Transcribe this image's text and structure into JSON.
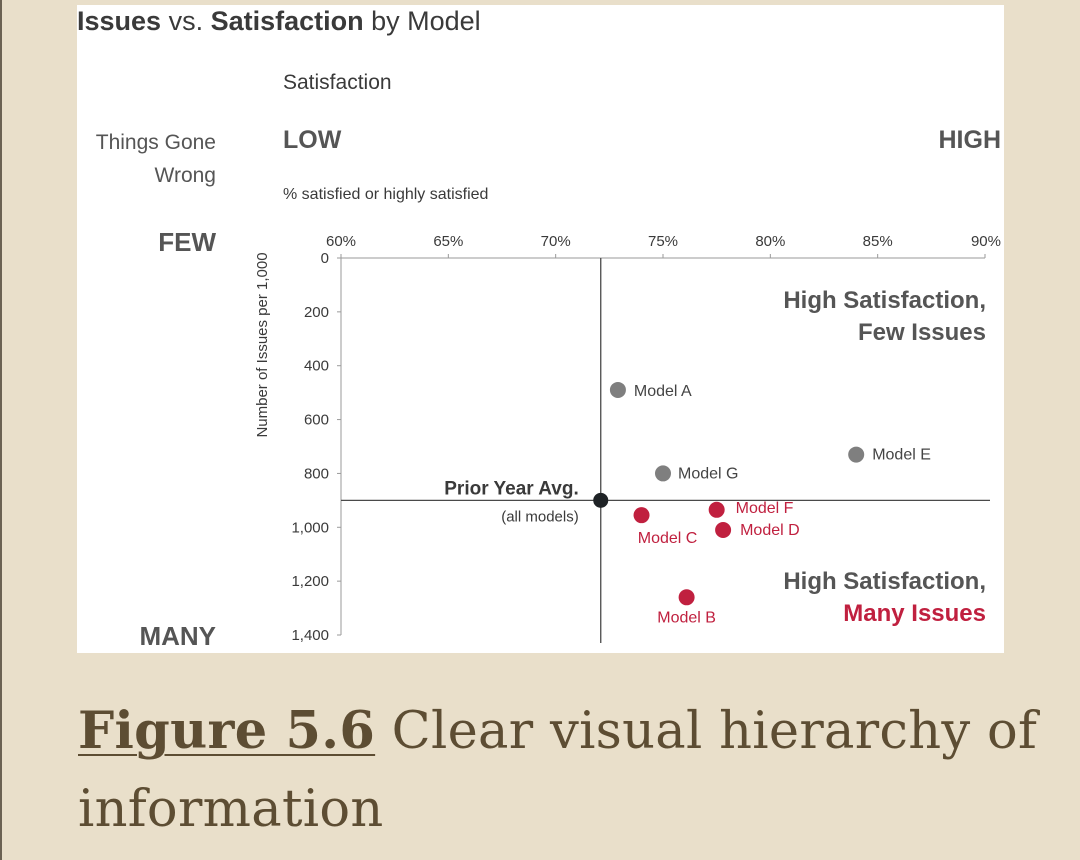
{
  "caption": {
    "label": "Figure 5.6",
    "text": "Clear visual hierarchy of information"
  },
  "chart_data": {
    "type": "scatter",
    "title_parts": [
      "Issues",
      " vs. ",
      "Satisfaction",
      " by Model"
    ],
    "x_axis": {
      "heading": "Satisfaction",
      "low_label": "LOW",
      "high_label": "HIGH",
      "unit_label": "% satisfied or highly satisfied",
      "range": [
        60,
        90
      ],
      "ticks": [
        60,
        65,
        70,
        75,
        80,
        85,
        90
      ],
      "tick_labels": [
        "60%",
        "65%",
        "70%",
        "75%",
        "80%",
        "85%",
        "90%"
      ]
    },
    "y_axis": {
      "heading_line1": "Things Gone",
      "heading_line2": "Wrong",
      "few_label": "FEW",
      "many_label": "MANY",
      "label": "Number of Issues per 1,000",
      "range": [
        0,
        1400
      ],
      "ticks": [
        0,
        200,
        400,
        600,
        800,
        1000,
        1200,
        1400
      ],
      "tick_labels": [
        "0",
        "200",
        "400",
        "600",
        "800",
        "1,000",
        "1,200",
        "1,400"
      ]
    },
    "reference": {
      "x": 72.1,
      "y": 900,
      "label": "Prior Year Avg.",
      "sublabel": "(all models)"
    },
    "quadrant_labels": {
      "top_line1": "High Satisfaction,",
      "top_line2": "Few Issues",
      "bottom_line1": "High Satisfaction,",
      "bottom_line2": "Many Issues"
    },
    "colors": {
      "gray": "#7f7f7f",
      "red": "#c0203f",
      "avg": "#1f2326",
      "text": "#3a3a3a"
    },
    "points": [
      {
        "name": "Model A",
        "x": 72.9,
        "y": 490,
        "group": "gray"
      },
      {
        "name": "Model B",
        "x": 76.1,
        "y": 1260,
        "group": "red"
      },
      {
        "name": "Model C",
        "x": 74.0,
        "y": 955,
        "group": "red"
      },
      {
        "name": "Model D",
        "x": 77.8,
        "y": 1010,
        "group": "red"
      },
      {
        "name": "Model E",
        "x": 84.0,
        "y": 730,
        "group": "gray"
      },
      {
        "name": "Model F",
        "x": 77.5,
        "y": 935,
        "group": "red"
      },
      {
        "name": "Model G",
        "x": 75.0,
        "y": 800,
        "group": "gray"
      }
    ]
  }
}
